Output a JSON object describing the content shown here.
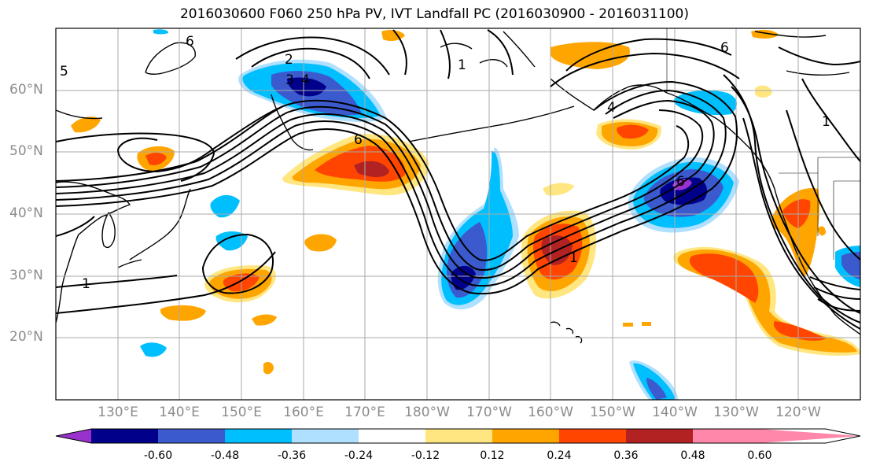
{
  "title": "2016030600 F060 250 hPa PV, IVT Landfall PC (2016030900 - 2016031100)",
  "lat_labels": [
    "60°N",
    "50°N",
    "40°N",
    "30°N",
    "20°N"
  ],
  "lon_labels": [
    "130°E",
    "140°E",
    "150°E",
    "160°E",
    "170°E",
    "180°W",
    "170°W",
    "160°W",
    "150°W",
    "140°W",
    "130°W",
    "120°W"
  ],
  "map_extent": {
    "lon_min": 120,
    "lon_max": 250,
    "lat_min": 10,
    "lat_max": 70
  },
  "contour_labels": [
    "2",
    "3",
    "4",
    "6",
    "6",
    "1",
    "1",
    "1",
    "4",
    "6",
    "5",
    "6",
    "1"
  ],
  "colorbar": {
    "ticks": [
      "-0.60",
      "-0.48",
      "-0.36",
      "-0.24",
      "-0.12",
      "0.12",
      "0.24",
      "0.36",
      "0.48",
      "0.60"
    ],
    "colors": [
      "#9932cc",
      "#00008b",
      "#3a5acd",
      "#00bfff",
      "#b0e0ff",
      "#ffffff",
      "#ffe680",
      "#ffa500",
      "#ff4500",
      "#b22222",
      "#ff88aa"
    ],
    "extend": "both"
  }
}
